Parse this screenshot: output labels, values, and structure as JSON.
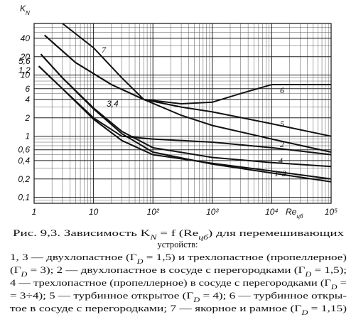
{
  "chart_data": {
    "type": "line",
    "log_x": true,
    "log_y": true,
    "grid": true,
    "minor_grid": true,
    "color": "#111111",
    "y_label": [
      "K",
      "N"
    ],
    "x_label": [
      "Re",
      "цб"
    ],
    "xlim": [
      1,
      100000
    ],
    "ylim": [
      0.08,
      70
    ],
    "xticks": [
      1,
      10,
      {
        "value": 100,
        "label": "10²"
      },
      {
        "value": 1000,
        "label": "10³"
      },
      {
        "value": 10000,
        "label": "10⁴"
      },
      {
        "value": 100000,
        "label": "10⁵"
      }
    ],
    "yticks": [
      {
        "value": 0.1,
        "label": "0,1"
      },
      {
        "value": 0.2,
        "label": "0,2"
      },
      {
        "value": 0.4,
        "label": "0,4"
      },
      {
        "value": 0.6,
        "label": "0,6"
      },
      1,
      2,
      4,
      6,
      10,
      20,
      40
    ],
    "curve_labels": [
      "5,6",
      "1,2",
      "3,4"
    ],
    "series": [
      {
        "name": "1",
        "x": [
          1.2,
          3,
          10,
          30,
          100,
          1000,
          10000,
          100000
        ],
        "values": [
          14,
          6,
          1.9,
          0.85,
          0.5,
          0.36,
          0.27,
          0.2
        ]
      },
      {
        "name": "2",
        "x": [
          1.2,
          3,
          10,
          30,
          100,
          1000,
          10000,
          100000
        ],
        "values": [
          14,
          6,
          2,
          1,
          0.9,
          0.8,
          0.65,
          0.5
        ]
      },
      {
        "name": "3",
        "x": [
          1.3,
          3,
          10,
          30,
          100,
          1000,
          10000,
          100000
        ],
        "values": [
          22,
          9,
          2.8,
          1.1,
          0.55,
          0.35,
          0.25,
          0.18
        ]
      },
      {
        "name": "4",
        "x": [
          1.3,
          3,
          10,
          30,
          100,
          1000,
          10000,
          100000
        ],
        "values": [
          22,
          9,
          2.9,
          1.2,
          0.65,
          0.45,
          0.37,
          0.32
        ]
      },
      {
        "name": "5",
        "x": [
          1.5,
          5,
          20,
          70,
          300,
          1000,
          10000,
          100000
        ],
        "values": [
          45,
          16,
          7,
          4,
          3,
          2.5,
          1.6,
          1.0
        ]
      },
      {
        "name": "6",
        "x": [
          1.5,
          5,
          20,
          70,
          300,
          1000,
          3000,
          10000,
          100000
        ],
        "values": [
          45,
          16,
          7,
          4,
          3.4,
          3.6,
          5,
          7,
          7
        ]
      },
      {
        "name": "7",
        "x": [
          3,
          10,
          30,
          70,
          300,
          1000,
          10000,
          100000
        ],
        "values": [
          70,
          28,
          9,
          4,
          2.2,
          1.5,
          0.9,
          0.55
        ]
      }
    ]
  },
  "caption": {
    "lines": [
      [
        "Рис. 9,3. Зависимость K",
        "N",
        " = f (Re",
        "цб",
        ") для перемешивающих"
      ],
      [
        "устройств:"
      ],
      [
        "1, 3 — двухлопастное (Γ",
        "D",
        " = 1,5) и трехлопастное (пропеллерное)"
      ],
      [
        "(Γ",
        "D",
        " = 3); 2 — двухлопастное в сосуде с перегородками (Γ",
        "D",
        " = 1,5);"
      ],
      [
        "4 — трехлопастное (пропеллерное) в сосуде с перегородками (Γ",
        "D",
        " ="
      ],
      [
        "= 3÷4); 5 — турбинное открытое (Γ",
        "D",
        " = 4); 6 — турбинное откры-"
      ],
      [
        "тое в сосуде с перегородками; 7 — якорное и рамное (Γ",
        "D",
        " = 1,15)"
      ]
    ]
  }
}
